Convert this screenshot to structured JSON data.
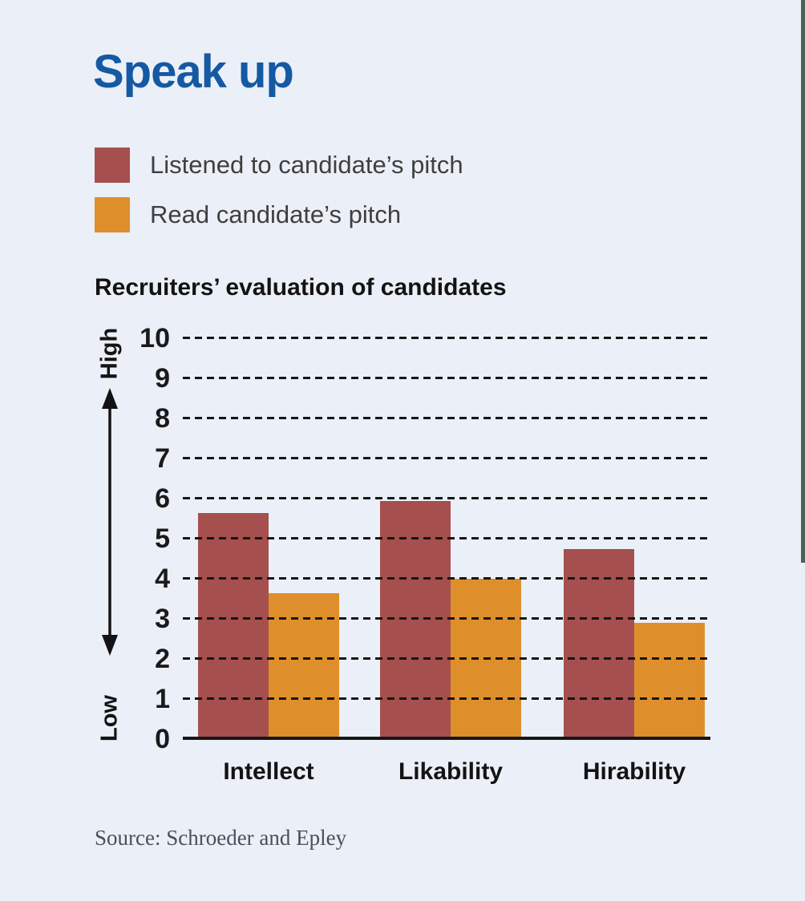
{
  "page": {
    "background": "#ebeff7",
    "edge_accent_color": "#4a6252"
  },
  "title": {
    "text": "Speak up",
    "color": "#1559a3"
  },
  "legend": {
    "items": [
      {
        "label": "Listened to candidate’s pitch",
        "color": "#a5504e"
      },
      {
        "label": "Read candidate’s pitch",
        "color": "#de8f2b"
      }
    ]
  },
  "chart_data": {
    "type": "bar",
    "title": "Recruiters’ evaluation of candidates",
    "categories": [
      "Intellect",
      "Likability",
      "Hirability"
    ],
    "series": [
      {
        "name": "Listened to candidate’s pitch",
        "color": "#a5504e",
        "values": [
          5.65,
          5.95,
          4.75
        ]
      },
      {
        "name": "Read candidate’s pitch",
        "color": "#de8f2b",
        "values": [
          3.65,
          4.0,
          2.9
        ]
      }
    ],
    "ylim": [
      0,
      10
    ],
    "yticks": [
      0,
      1,
      2,
      3,
      4,
      5,
      6,
      7,
      8,
      9,
      10
    ],
    "ylabel_top": "High",
    "ylabel_bottom": "Low",
    "grid": "horizontal-dashed",
    "gridline_color": "#161616",
    "legend_position": "top-left"
  },
  "source": "Source: Schroeder and Epley"
}
